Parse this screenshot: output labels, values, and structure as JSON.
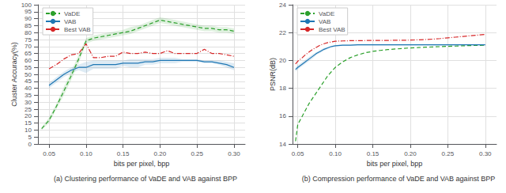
{
  "chart_data": [
    {
      "type": "line",
      "title": "(a) Clustering performance of VaDE and VAB against BPP",
      "x_label": "bits per pixel, bpp",
      "y_label": "Cluster Accuracy(%)",
      "x": [
        0.04,
        0.05,
        0.06,
        0.07,
        0.08,
        0.09,
        0.1,
        0.11,
        0.12,
        0.13,
        0.14,
        0.15,
        0.16,
        0.17,
        0.18,
        0.19,
        0.2,
        0.21,
        0.22,
        0.23,
        0.24,
        0.25,
        0.26,
        0.27,
        0.28,
        0.29,
        0.3
      ],
      "series": [
        {
          "name": "VaDE",
          "color": "#2ca02c",
          "line_style": "dashed",
          "values": [
            11,
            17,
            27,
            38,
            49,
            61,
            74,
            76,
            77,
            78,
            79,
            80,
            81,
            83,
            85,
            87,
            89,
            88,
            87,
            86,
            85,
            84,
            83,
            83,
            82,
            82,
            81
          ],
          "upper": [
            12,
            19,
            29,
            41,
            52,
            64,
            76,
            78,
            79,
            80,
            81,
            82,
            84,
            85,
            87,
            89,
            91,
            90,
            89,
            88,
            87,
            86,
            85,
            85,
            84,
            84,
            83
          ],
          "lower": [
            10,
            15,
            25,
            35,
            46,
            58,
            72,
            74,
            75,
            76,
            77,
            78,
            79,
            81,
            83,
            85,
            87,
            86,
            85,
            84,
            83,
            82,
            81,
            81,
            80,
            80,
            79
          ]
        },
        {
          "name": "VAB",
          "color": "#1f77b4",
          "line_style": "solid",
          "values": [
            null,
            42,
            46,
            50,
            53,
            55,
            55,
            57,
            57,
            57,
            57,
            58,
            58,
            58,
            59,
            59,
            60,
            60,
            60,
            60,
            60,
            60,
            59,
            59,
            58,
            57,
            55
          ],
          "upper": [
            null,
            44,
            48,
            52,
            55,
            57,
            59,
            60,
            60,
            60,
            60,
            60,
            61,
            61,
            61,
            61,
            62,
            62,
            62,
            61,
            61,
            61,
            60,
            60,
            60,
            59,
            58
          ],
          "lower": [
            null,
            40,
            44,
            48,
            51,
            53,
            51,
            54,
            54,
            54,
            54,
            56,
            55,
            55,
            57,
            57,
            58,
            58,
            58,
            59,
            59,
            59,
            58,
            58,
            57,
            55,
            53
          ]
        },
        {
          "name": "Best VAB",
          "color": "#d62728",
          "line_style": "dashdot",
          "values": [
            null,
            54,
            57,
            61,
            64,
            65,
            72,
            62,
            62,
            63,
            63,
            66,
            65,
            65,
            66,
            65,
            65,
            67,
            65,
            65,
            65,
            65,
            68,
            65,
            65,
            64,
            63
          ]
        }
      ],
      "xlim": [
        0.035,
        0.315
      ],
      "xticks": [
        0.05,
        {
          "value": 0.1,
          "label": "0.10"
        },
        0.15,
        {
          "value": 0.2,
          "label": "0.20"
        },
        0.25,
        {
          "value": 0.3,
          "label": "0.30"
        }
      ],
      "ylim": [
        0,
        100
      ],
      "yticks": [
        0,
        5,
        10,
        15,
        20,
        25,
        30,
        35,
        40,
        45,
        50,
        55,
        60,
        65,
        70,
        75,
        80,
        85,
        90,
        95,
        100
      ],
      "grid": true,
      "legend": "upper left"
    },
    {
      "type": "line",
      "title": "(b) Compression performance of VaDE and VAB against BPP",
      "x_label": "bits per pixel, bpp",
      "y_label": "PSNR(dB)",
      "x": [
        0.047,
        0.05,
        0.055,
        0.06,
        0.065,
        0.07,
        0.075,
        0.08,
        0.085,
        0.09,
        0.095,
        0.1,
        0.11,
        0.12,
        0.13,
        0.14,
        0.15,
        0.16,
        0.17,
        0.18,
        0.19,
        0.2,
        0.21,
        0.22,
        0.23,
        0.24,
        0.25,
        0.26,
        0.27,
        0.28,
        0.29,
        0.3
      ],
      "series": [
        {
          "name": "VaDE",
          "color": "#2ca02c",
          "line_style": "dashed",
          "values": [
            14.2,
            15.4,
            15.9,
            16.4,
            16.9,
            17.3,
            17.7,
            18.1,
            18.5,
            18.9,
            19.2,
            19.5,
            19.9,
            20.2,
            20.4,
            20.55,
            20.65,
            20.72,
            20.78,
            20.82,
            20.86,
            20.9,
            20.92,
            20.95,
            20.97,
            20.99,
            21.01,
            21.03,
            21.05,
            21.07,
            21.08,
            21.1
          ]
        },
        {
          "name": "VAB",
          "color": "#1f77b4",
          "line_style": "solid",
          "values": [
            19.35,
            19.5,
            19.7,
            19.9,
            20.1,
            20.3,
            20.5,
            20.65,
            20.8,
            20.9,
            21.0,
            21.05,
            21.1,
            21.1,
            21.12,
            21.12,
            21.12,
            21.12,
            21.12,
            21.12,
            21.12,
            21.12,
            21.12,
            21.12,
            21.12,
            21.12,
            21.12,
            21.12,
            21.12,
            21.12,
            21.12,
            21.12
          ],
          "upper": [
            19.5,
            19.65,
            19.85,
            20.05,
            20.25,
            20.45,
            20.6,
            20.75,
            20.9,
            20.98,
            21.05,
            21.1,
            21.15,
            21.15,
            21.17,
            21.17,
            21.17,
            21.17,
            21.17,
            21.17,
            21.17,
            21.17,
            21.17,
            21.17,
            21.17,
            21.17,
            21.17,
            21.17,
            21.17,
            21.17,
            21.17,
            21.17
          ],
          "lower": [
            19.2,
            19.35,
            19.55,
            19.75,
            19.95,
            20.15,
            20.4,
            20.55,
            20.7,
            20.82,
            20.95,
            21.0,
            21.05,
            21.05,
            21.07,
            21.07,
            21.07,
            21.07,
            21.07,
            21.07,
            21.07,
            21.07,
            21.07,
            21.07,
            21.07,
            21.07,
            21.07,
            21.07,
            21.07,
            21.07,
            21.07,
            21.07
          ]
        },
        {
          "name": "Best VAB",
          "color": "#d62728",
          "line_style": "dashdot",
          "values": [
            19.75,
            19.95,
            20.15,
            20.4,
            20.6,
            20.8,
            20.95,
            21.1,
            21.2,
            21.28,
            21.33,
            21.38,
            21.4,
            21.42,
            21.42,
            21.43,
            21.44,
            21.44,
            21.44,
            21.45,
            21.45,
            21.46,
            21.48,
            21.5,
            21.53,
            21.57,
            21.62,
            21.67,
            21.72,
            21.77,
            21.82,
            21.87
          ]
        }
      ],
      "xlim": [
        0.043,
        0.315
      ],
      "xticks": [
        0.05,
        {
          "value": 0.1,
          "label": "0.10"
        },
        0.15,
        {
          "value": 0.2,
          "label": "0.20"
        },
        0.25,
        {
          "value": 0.3,
          "label": "0.30"
        }
      ],
      "ylim": [
        14,
        24
      ],
      "yticks": [
        14,
        16,
        18,
        20,
        22,
        24
      ],
      "grid": true,
      "legend": "upper left"
    }
  ]
}
